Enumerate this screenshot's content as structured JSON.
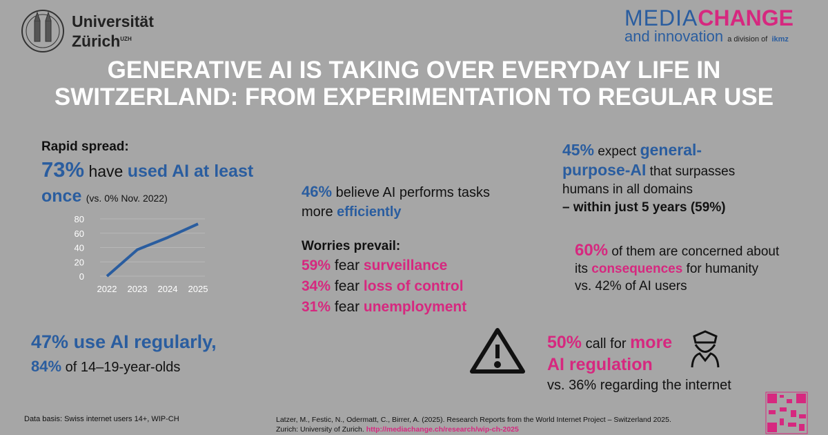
{
  "logos": {
    "uzh_line1": "Universität",
    "uzh_line2": "Zürich",
    "uzh_sup": "UZH",
    "mc_media": "MEDIA",
    "mc_change": "CHANGE",
    "mc_and": "and innovation",
    "mc_division": "a division of",
    "mc_ikmz": "ikmz"
  },
  "title": [
    "GENERATIVE AI IS TAKING OVER EVERYDAY LIFE IN",
    "SWITZERLAND: FROM EXPERIMENTATION TO REGULAR USE"
  ],
  "spread": {
    "heading": "Rapid spread:",
    "pct": "73%",
    "have": "have",
    "used": "used AI at least",
    "once": "once",
    "note": "(vs. 0% Nov. 2022)"
  },
  "chart": {
    "type": "line",
    "x": [
      "2022",
      "2023",
      "2024",
      "2025"
    ],
    "values": [
      0,
      37,
      54,
      73
    ],
    "ylim": [
      0,
      80
    ],
    "yticks": [
      0,
      20,
      40,
      60,
      80
    ],
    "color": "#2a5d9f",
    "grid": true
  },
  "regular": {
    "pct": "47%",
    "text": "use AI regularly,",
    "pct2": "84%",
    "text2": "of 14–19-year-olds"
  },
  "efficiency": {
    "pct": "46%",
    "t1": "believe AI performs tasks",
    "t2": "more",
    "t3": "efficiently"
  },
  "worries": {
    "heading": "Worries prevail:",
    "items": [
      {
        "pct": "59%",
        "verb": "fear",
        "what": "surveillance"
      },
      {
        "pct": "34%",
        "verb": "fear",
        "what": "loss of control"
      },
      {
        "pct": "31%",
        "verb": "fear",
        "what": "unemployment"
      }
    ]
  },
  "agi": {
    "pct": "45%",
    "t1": "expect",
    "t2": "general-",
    "t3": "purpose-AI",
    "t4": "that surpasses",
    "t5": "humans in all domains",
    "t6": "– within just 5 years",
    "t7": "(59%)"
  },
  "concern": {
    "pct": "60%",
    "t1": "of them are concerned about",
    "t2": "its",
    "t3": "consequences",
    "t4": "for humanity",
    "t5": "vs. 42% of AI users"
  },
  "regulation": {
    "pct": "50%",
    "t1": "call for",
    "t2": "more",
    "t3": "AI regulation",
    "t4": "vs. 36% regarding the internet"
  },
  "footer": {
    "basis": "Data basis: Swiss internet users 14+, WIP-CH",
    "ref1": "Latzer, M., Festic, N., Odermatt, C., Birrer, A. (2025). Research Reports from the World Internet Project – Switzerland 2025.",
    "ref2": "Zurich: University of Zurich.",
    "link": "http://mediachange.ch/research/wip-ch-2025"
  }
}
